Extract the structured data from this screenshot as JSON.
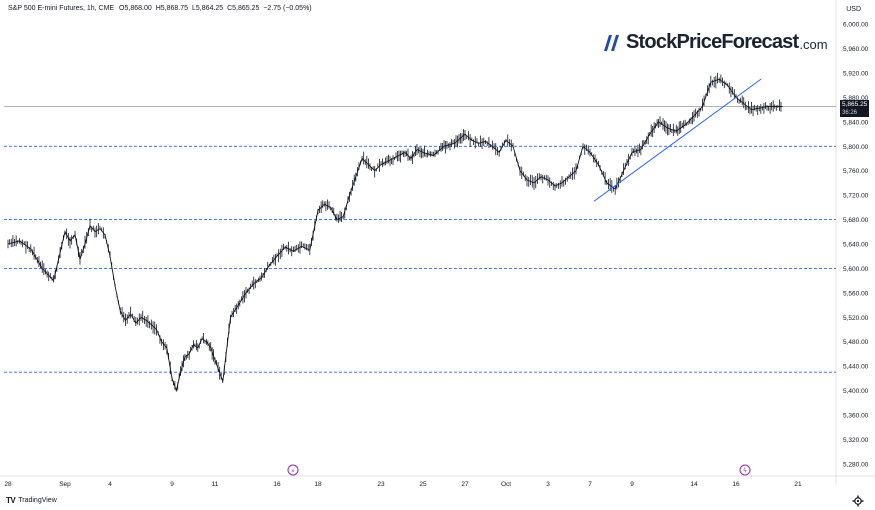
{
  "header": {
    "symbol": "S&P 500 E-mini Futures, 1h, CME",
    "open_label": "O",
    "open": "5,868.00",
    "high_label": "H",
    "high": "5,868.75",
    "low_label": "L",
    "low": "5,864.25",
    "close_label": "C",
    "close": "5,865.25",
    "change": "−2.75 (−0.05%)"
  },
  "currency": "USD",
  "brand": {
    "name": "StockPriceForecast",
    "tld": ".com"
  },
  "footer": {
    "tv_logo_mark": "TV",
    "tv_logo_text": "TradingView"
  },
  "price_tag": {
    "price": "5,865.25",
    "countdown": "36:26"
  },
  "colors": {
    "candle": "#131722",
    "trendline": "#2962ff",
    "level_line": "#2962ff",
    "current_price_line": "#9598a1",
    "grid": "#ffffff",
    "axis_text": "#131722",
    "event_icon": "#9c27b0"
  },
  "icons": [
    "tradingview-logo-icon",
    "settings-gear-icon",
    "dividend-event-icon",
    "earnings-event-icon",
    "brand-slash-icon"
  ],
  "chart_data": {
    "type": "line",
    "title": "S&P 500 E-mini Futures, 1h, CME",
    "xlabel": "",
    "ylabel": "",
    "ylim": [
      5260,
      6020
    ],
    "y_ticks": [
      "6,000.00",
      "5,960.00",
      "5,920.00",
      "5,880.00",
      "5,840.00",
      "5,800.00",
      "5,760.00",
      "5,720.00",
      "5,680.00",
      "5,640.00",
      "5,600.00",
      "5,560.00",
      "5,520.00",
      "5,480.00",
      "5,440.00",
      "5,400.00",
      "5,360.00",
      "5,320.00",
      "5,280.00"
    ],
    "x_ticks": [
      "28",
      "Sep",
      "4",
      "9",
      "11",
      "16",
      "18",
      "23",
      "25",
      "27",
      "Oct",
      "3",
      "7",
      "9",
      "14",
      "16",
      "21"
    ],
    "grid": false,
    "horizontal_levels": [
      5800,
      5680,
      5600,
      5430
    ],
    "current_price": 5865.25,
    "trendline": {
      "start": [
        "7",
        5710
      ],
      "end": [
        "16",
        5910
      ]
    },
    "series": [
      {
        "values": [
          [
            "28",
            5640
          ],
          [
            "28",
            5645
          ],
          [
            "28",
            5632
          ],
          [
            "28",
            5600
          ],
          [
            "28",
            5580
          ],
          [
            "Sep",
            5660
          ],
          [
            "Sep",
            5645
          ],
          [
            "Sep",
            5655
          ],
          [
            "Sep",
            5615
          ],
          [
            "Sep",
            5640
          ],
          [
            "Sep",
            5670
          ],
          [
            "Sep",
            5660
          ],
          [
            "Sep",
            5665
          ],
          [
            "Sep",
            5655
          ],
          [
            "4",
            5620
          ],
          [
            "4",
            5570
          ],
          [
            "4",
            5530
          ],
          [
            "4",
            5515
          ],
          [
            "4",
            5525
          ],
          [
            "4",
            5510
          ],
          [
            "4",
            5520
          ],
          [
            "4",
            5515
          ],
          [
            "4",
            5508
          ],
          [
            "4",
            5500
          ],
          [
            "4",
            5480
          ],
          [
            "4",
            5470
          ],
          [
            "9",
            5420
          ],
          [
            "9",
            5400
          ],
          [
            "9",
            5430
          ],
          [
            "9",
            5455
          ],
          [
            "9",
            5460
          ],
          [
            "9",
            5475
          ],
          [
            "9",
            5470
          ],
          [
            "9",
            5485
          ],
          [
            "9",
            5480
          ],
          [
            "9",
            5470
          ],
          [
            "11",
            5450
          ],
          [
            "11",
            5415
          ],
          [
            "11",
            5520
          ],
          [
            "11",
            5540
          ],
          [
            "11",
            5560
          ],
          [
            "11",
            5575
          ],
          [
            "11",
            5585
          ],
          [
            "11",
            5605
          ],
          [
            "16",
            5620
          ],
          [
            "16",
            5635
          ],
          [
            "16",
            5628
          ],
          [
            "16",
            5636
          ],
          [
            "16",
            5630
          ],
          [
            "18",
            5695
          ],
          [
            "18",
            5705
          ],
          [
            "18",
            5700
          ],
          [
            "18",
            5680
          ],
          [
            "18",
            5685
          ],
          [
            "18",
            5720
          ],
          [
            "18",
            5750
          ],
          [
            "18",
            5780
          ],
          [
            "18",
            5770
          ],
          [
            "18",
            5760
          ],
          [
            "23",
            5770
          ],
          [
            "23",
            5775
          ],
          [
            "23",
            5780
          ],
          [
            "23",
            5785
          ],
          [
            "23",
            5790
          ],
          [
            "23",
            5780
          ],
          [
            "23",
            5795
          ],
          [
            "25",
            5790
          ],
          [
            "25",
            5785
          ],
          [
            "25",
            5800
          ],
          [
            "25",
            5805
          ],
          [
            "27",
            5820
          ],
          [
            "27",
            5810
          ],
          [
            "27",
            5805
          ],
          [
            "27",
            5808
          ],
          [
            "27",
            5800
          ],
          [
            "27",
            5790
          ],
          [
            "Oct",
            5810
          ],
          [
            "Oct",
            5800
          ],
          [
            "Oct",
            5760
          ],
          [
            "Oct",
            5745
          ],
          [
            "Oct",
            5740
          ],
          [
            "Oct",
            5750
          ],
          [
            "3",
            5745
          ],
          [
            "3",
            5735
          ],
          [
            "3",
            5740
          ],
          [
            "3",
            5750
          ],
          [
            "3",
            5760
          ],
          [
            "3",
            5800
          ],
          [
            "7",
            5790
          ],
          [
            "7",
            5770
          ],
          [
            "7",
            5740
          ],
          [
            "7",
            5730
          ],
          [
            "7",
            5760
          ],
          [
            "9",
            5790
          ],
          [
            "9",
            5795
          ],
          [
            "9",
            5820
          ],
          [
            "9",
            5840
          ],
          [
            "9",
            5830
          ],
          [
            "9",
            5825
          ],
          [
            "9",
            5835
          ],
          [
            "14",
            5850
          ],
          [
            "14",
            5865
          ],
          [
            "14",
            5905
          ],
          [
            "14",
            5910
          ],
          [
            "14",
            5900
          ],
          [
            "16",
            5880
          ],
          [
            "16",
            5860
          ],
          [
            "16",
            5865
          ],
          [
            "16",
            5865.25
          ]
        ]
      }
    ]
  }
}
